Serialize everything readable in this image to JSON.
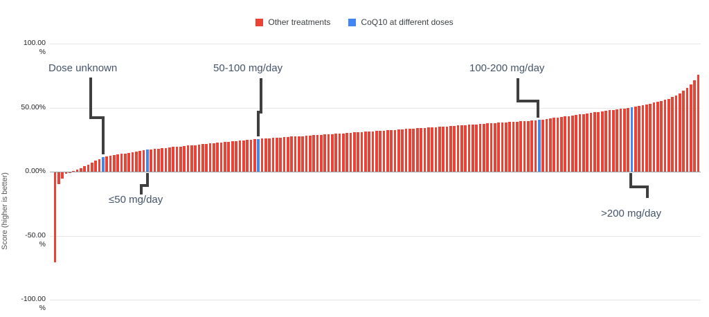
{
  "chart_data": {
    "type": "bar",
    "title": "",
    "xlabel": "",
    "ylabel": "Score (higher is better)",
    "ylim": [
      -100,
      100
    ],
    "grid": true,
    "legend_position": "top-center",
    "y_ticks": [
      {
        "value": 100,
        "label": "100.00\n%"
      },
      {
        "value": 50,
        "label": "50.00%"
      },
      {
        "value": 0,
        "label": "0.00%"
      },
      {
        "value": -50,
        "label": "-50.00\n%"
      },
      {
        "value": -100,
        "label": "-100.00\n%"
      }
    ],
    "series": [
      {
        "name": "Other treatments",
        "color": "#ea4335"
      },
      {
        "name": "CoQ10 at different doses",
        "color": "#4285f4"
      }
    ],
    "coq10_indices": [
      13,
      25,
      55,
      131,
      156
    ],
    "annotations": [
      {
        "label": "Dose unknown",
        "target_index": 13,
        "target_value_pct": 11.5
      },
      {
        "label": "≤50 mg/day",
        "target_index": 25,
        "target_value_pct": 17.1
      },
      {
        "label": "50-100 mg/day",
        "target_index": 55,
        "target_value_pct": 25.5
      },
      {
        "label": "100-200 mg/day",
        "target_index": 131,
        "target_value_pct": 40.3
      },
      {
        "label": ">200 mg/day",
        "target_index": 156,
        "target_value_pct": 50.2
      }
    ],
    "values": [
      -70,
      -9,
      -5,
      -1.2,
      -0.4,
      0.4,
      1.4,
      2.7,
      4.1,
      5.6,
      7.0,
      8.5,
      10.0,
      11.5,
      12.0,
      12.5,
      12.9,
      13.4,
      13.9,
      14.3,
      14.8,
      15.3,
      15.7,
      16.2,
      16.6,
      17.1,
      17.5,
      17.8,
      18.1,
      18.3,
      18.6,
      18.9,
      19.2,
      19.4,
      19.7,
      20.0,
      20.3,
      20.5,
      20.8,
      21.1,
      21.4,
      21.6,
      21.9,
      22.2,
      22.5,
      22.7,
      23.0,
      23.3,
      23.6,
      23.8,
      24.1,
      24.4,
      24.7,
      24.9,
      25.2,
      25.5,
      25.7,
      25.9,
      26.1,
      26.3,
      26.5,
      26.7,
      26.9,
      27.1,
      27.3,
      27.4,
      27.6,
      27.8,
      28.0,
      28.2,
      28.4,
      28.6,
      28.8,
      29.0,
      29.2,
      29.4,
      29.6,
      29.8,
      30.0,
      30.2,
      30.4,
      30.6,
      30.8,
      31.0,
      31.1,
      31.3,
      31.5,
      31.7,
      31.9,
      32.1,
      32.3,
      32.5,
      32.7,
      32.9,
      33.1,
      33.3,
      33.5,
      33.7,
      33.9,
      34.1,
      34.3,
      34.5,
      34.7,
      34.8,
      35.0,
      35.2,
      35.4,
      35.6,
      35.8,
      36.0,
      36.2,
      36.4,
      36.6,
      36.8,
      37.0,
      37.2,
      37.4,
      37.6,
      37.8,
      38.0,
      38.2,
      38.4,
      38.5,
      38.7,
      38.9,
      39.1,
      39.3,
      39.5,
      39.7,
      39.9,
      40.1,
      40.3,
      40.7,
      41.1,
      41.5,
      41.9,
      42.3,
      42.7,
      43.1,
      43.5,
      43.9,
      44.3,
      44.7,
      45.1,
      45.5,
      45.9,
      46.3,
      46.7,
      47.1,
      47.5,
      47.9,
      48.3,
      48.7,
      49.1,
      49.4,
      49.8,
      50.2,
      50.8,
      51.3,
      51.9,
      52.5,
      53.1,
      53.8,
      54.4,
      55.1,
      56.0,
      57.0,
      58.2,
      59.6,
      61.2,
      63.0,
      65.2,
      68.0,
      71.5,
      75.5
    ]
  }
}
